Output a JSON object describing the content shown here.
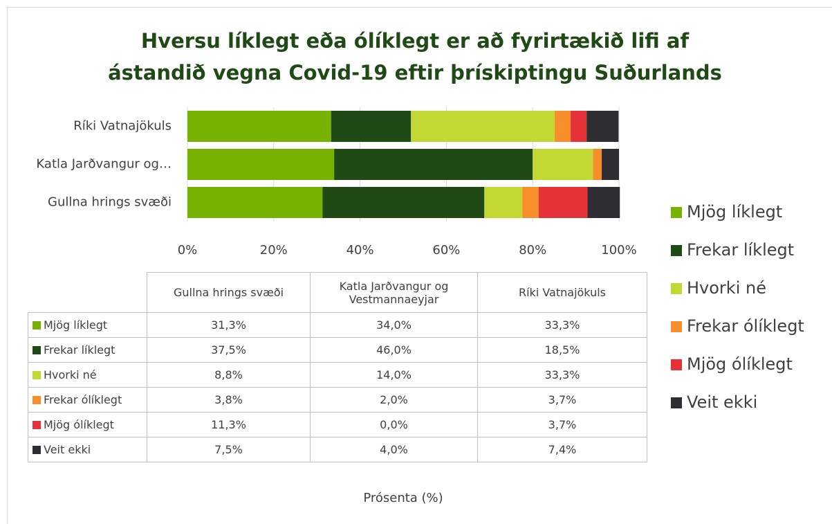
{
  "chart_data": {
    "type": "bar",
    "orientation": "horizontal",
    "stacked": true,
    "title": "Hversu líklegt eða ólíklegt er að fyrirtækið lifi af ástandið vegna Covid-19 eftir þrískiptingu Suðurlands",
    "categories": [
      "Gullna hrings svæði",
      "Katla Jarðvangur og Vestmannaeyjar",
      "Ríki Vatnajökuls"
    ],
    "category_labels": [
      "Gullna hrings svæði",
      "Katla Jarðvangur og…",
      "Ríki Vatnajökuls"
    ],
    "series": [
      {
        "name": "Mjög líklegt",
        "color": "#78b200",
        "values": [
          31.3,
          34,
          33.3
        ],
        "value_labels": [
          "31,3%",
          "34,0%",
          "33,3%"
        ]
      },
      {
        "name": "Frekar líklegt",
        "color": "#1f4a16",
        "values": [
          37.5,
          46,
          18.5
        ],
        "value_labels": [
          "37,5%",
          "46,0%",
          "18,5%"
        ]
      },
      {
        "name": "Hvorki né",
        "color": "#c3d835",
        "values": [
          8.8,
          14,
          33.3
        ],
        "value_labels": [
          "8,8%",
          "14,0%",
          "33,3%"
        ]
      },
      {
        "name": "Frekar ólíklegt",
        "color": "#f78e2a",
        "values": [
          3.8,
          2,
          3.7
        ],
        "value_labels": [
          "3,8%",
          "2,0%",
          "3,7%"
        ]
      },
      {
        "name": "Mjög ólíklegt",
        "color": "#e53238",
        "values": [
          11.3,
          0,
          3.7
        ],
        "value_labels": [
          "11,3%",
          "0,0%",
          "3,7%"
        ]
      },
      {
        "name": "Veit ekki",
        "color": "#2e2e32",
        "values": [
          7.5,
          4,
          7.4
        ],
        "value_labels": [
          "7,5%",
          "4,0%",
          "7,4%"
        ]
      }
    ],
    "xlim": [
      0,
      100
    ],
    "xticks": [
      {
        "value": 0,
        "label": "0%"
      },
      {
        "value": 20,
        "label": "20%"
      },
      {
        "value": 40,
        "label": "40%"
      },
      {
        "value": 60,
        "label": "60%"
      },
      {
        "value": 80,
        "label": "80%"
      },
      {
        "value": 100,
        "label": "100%"
      }
    ],
    "xlabel": "Prósenta (%)",
    "grid": true,
    "legend": "right",
    "data_table": true
  }
}
